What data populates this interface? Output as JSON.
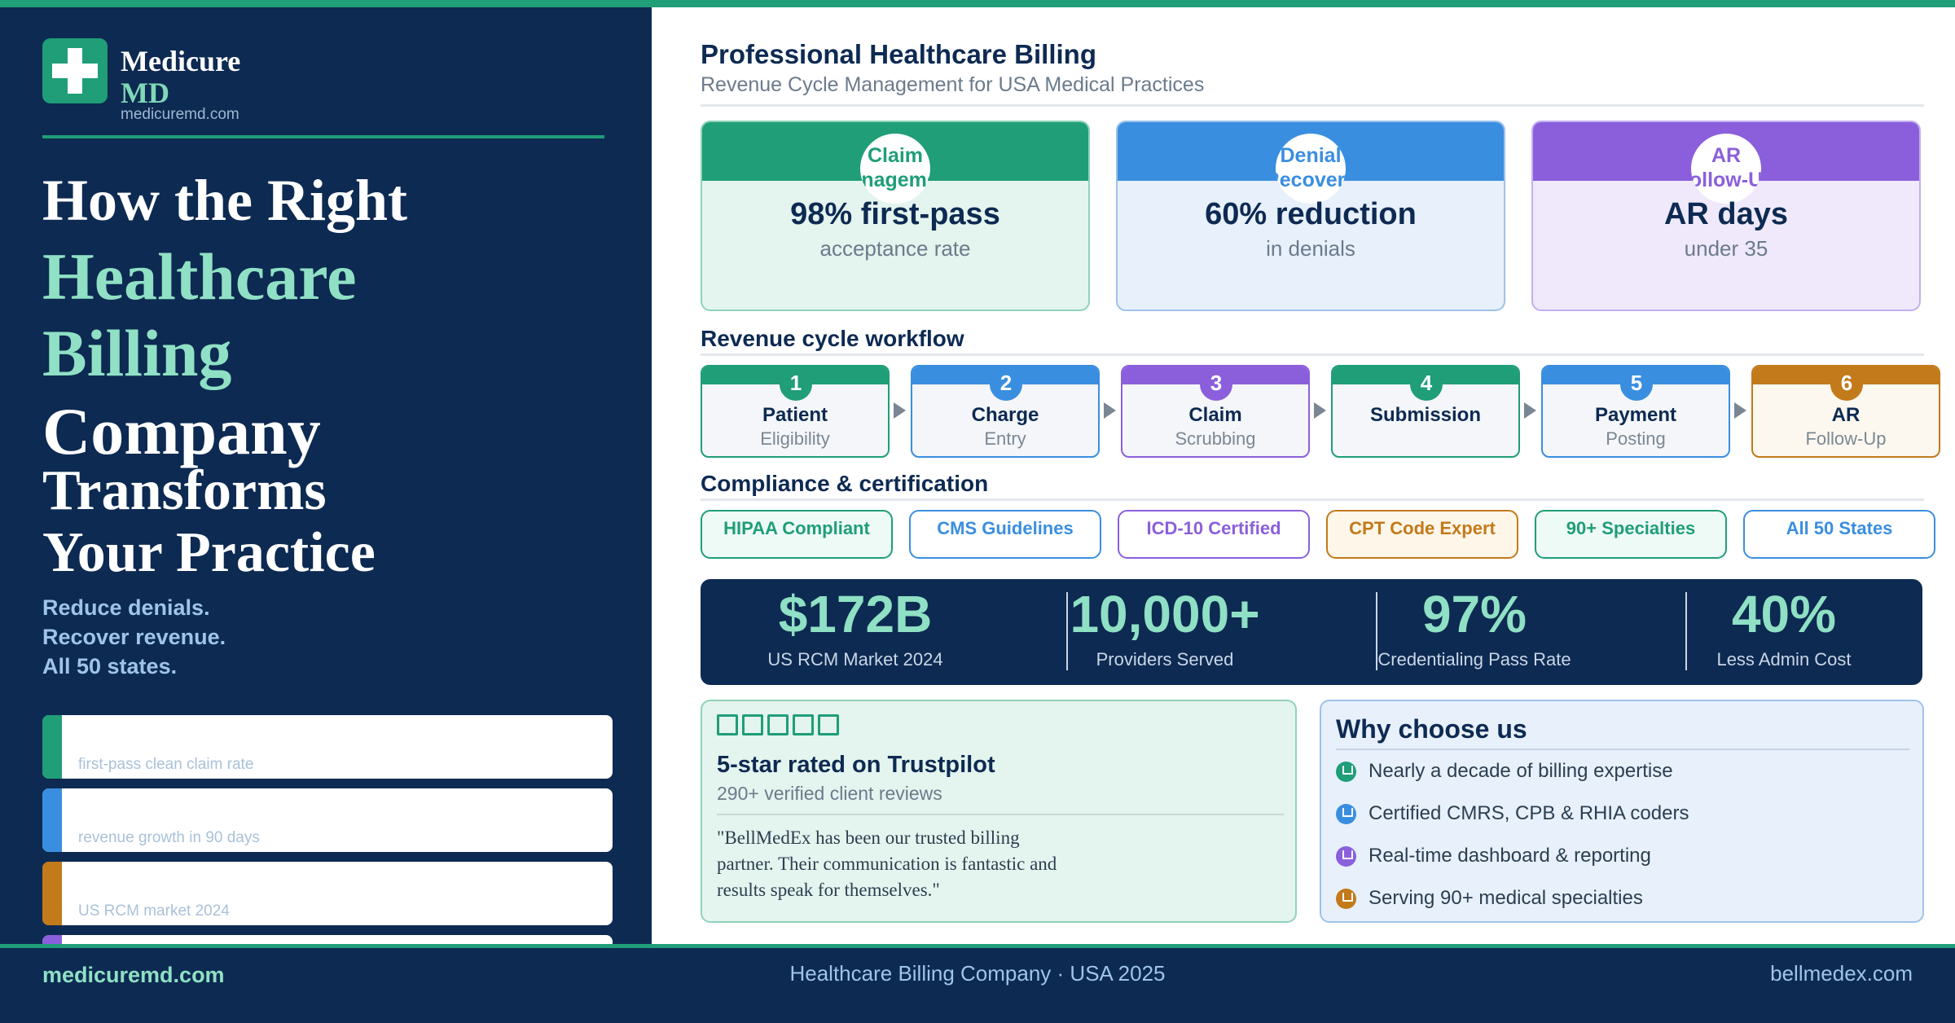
{
  "colors": {
    "navy": "#0d2a52",
    "green": "#1f9e78",
    "blue": "#3a8ee0",
    "purple": "#8b5fdc",
    "orange": "#c27a1a",
    "mint": "#8fe0c4"
  },
  "brand": {
    "logo_icon": "medical-cross-icon",
    "name_line1": "Medicure",
    "name_line2": "MD",
    "url": "medicuremd.com"
  },
  "headline": {
    "line1": "How the Right",
    "line2": "Healthcare",
    "line3": "Billing",
    "line4": "Company",
    "line5": "Transforms",
    "line6": "Your Practice"
  },
  "tagline": [
    "Reduce denials.",
    "Recover revenue.",
    "All 50 states."
  ],
  "left_stats": [
    {
      "label": "first-pass clean claim rate",
      "color": "#1f9e78"
    },
    {
      "label": "revenue growth in 90 days",
      "color": "#3a8ee0"
    },
    {
      "label": "US RCM market 2024",
      "color": "#c27a1a"
    },
    {
      "label": "",
      "color": "#8b5fdc"
    }
  ],
  "header": {
    "title": "Professional Healthcare Billing",
    "subtitle": "Revenue Cycle Management for USA Medical Practices"
  },
  "kpis": [
    {
      "badge_line1": "Claim",
      "badge_line2": "Management",
      "big": "98% first-pass",
      "small": "acceptance rate",
      "color": "#1f9e78",
      "bg": "#e4f4ee",
      "border": "#8fd3b8"
    },
    {
      "badge_line1": "Denial",
      "badge_line2": "Recovery",
      "big": "60% reduction",
      "small": "in denials",
      "color": "#3a8ee0",
      "bg": "#e7f0fb",
      "border": "#9ec2ea"
    },
    {
      "badge_line1": "AR",
      "badge_line2": "Follow-Up",
      "big": "AR days",
      "small": "under 35",
      "color": "#8b5fdc",
      "bg": "#efe9fb",
      "border": "#c3afee"
    }
  ],
  "workflow": {
    "heading": "Revenue cycle workflow",
    "steps": [
      {
        "num": "1",
        "title": "Patient",
        "sub": "Eligibility",
        "color": "#1f9e78"
      },
      {
        "num": "2",
        "title": "Charge",
        "sub": "Entry",
        "color": "#3a8ee0"
      },
      {
        "num": "3",
        "title": "Claim",
        "sub": "Scrubbing",
        "color": "#8b5fdc"
      },
      {
        "num": "4",
        "title": "Submission",
        "sub": "",
        "color": "#1f9e78"
      },
      {
        "num": "5",
        "title": "Payment",
        "sub": "Posting",
        "color": "#3a8ee0"
      },
      {
        "num": "6",
        "title": "AR",
        "sub": "Follow-Up",
        "color": "#c27a1a"
      }
    ]
  },
  "compliance": {
    "heading": "Compliance & certification",
    "badges": [
      {
        "label": "HIPAA Compliant",
        "color": "#1f9e78",
        "bg": "#eefaf6"
      },
      {
        "label": "CMS Guidelines",
        "color": "#3a8ee0",
        "bg": "#ffffff"
      },
      {
        "label": "ICD-10 Certified",
        "color": "#8b5fdc",
        "bg": "#ffffff"
      },
      {
        "label": "CPT Code Expert",
        "color": "#c27a1a",
        "bg": "#fdf6e9"
      },
      {
        "label": "90+ Specialties",
        "color": "#1f9e78",
        "bg": "#eefaf6"
      },
      {
        "label": "All 50 States",
        "color": "#3a8ee0",
        "bg": "#ffffff"
      }
    ]
  },
  "big_stats": [
    {
      "value": "$172B",
      "label": "US RCM Market 2024"
    },
    {
      "value": "10,000+",
      "label": "Providers Served"
    },
    {
      "value": "97%",
      "label": "Credentialing Pass Rate"
    },
    {
      "value": "40%",
      "label": "Less Admin Cost"
    }
  ],
  "trustpilot": {
    "stars": 5,
    "star_icon": "star-icon",
    "title": "5-star rated on Trustpilot",
    "subtitle": "290+ verified client reviews",
    "quote": "\"BellMedEx has been our trusted billing partner. Their communication is fantastic and results speak for themselves.\""
  },
  "why": {
    "heading": "Why choose us",
    "items": [
      {
        "text": "Nearly a decade of billing expertise",
        "color": "#1f9e78"
      },
      {
        "text": "Certified CMRS, CPB & RHIA coders",
        "color": "#3a8ee0"
      },
      {
        "text": "Real-time dashboard & reporting",
        "color": "#8b5fdc"
      },
      {
        "text": "Serving 90+ medical specialties",
        "color": "#c27a1a"
      }
    ]
  },
  "footer": {
    "left": "medicuremd.com",
    "center": "Healthcare Billing Company  ·  USA 2025",
    "right": "bellmedex.com"
  }
}
